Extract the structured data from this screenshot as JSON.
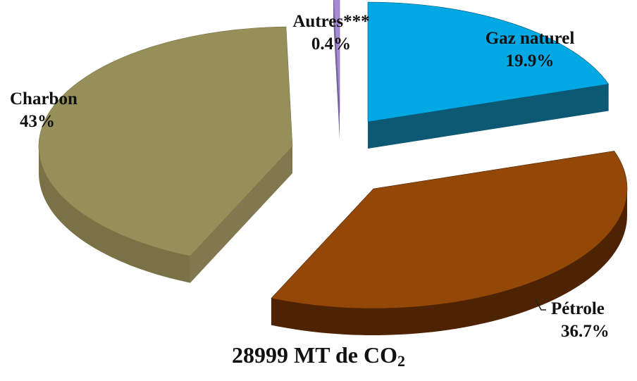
{
  "chart_data": {
    "type": "pie",
    "style": "exploded-3d",
    "title": "",
    "slices": [
      {
        "label": "Gaz naturel",
        "value_label": "19.9%",
        "value": 19.9,
        "top_color": "#00a8e4",
        "side_color": "#00506c"
      },
      {
        "label": "Pétrole",
        "value_label": "36.7%",
        "value": 36.7,
        "top_color": "#944808",
        "side_color": "#4e2303"
      },
      {
        "label": "Charbon",
        "value_label": "43%",
        "value": 43,
        "top_color": "#978f59",
        "side_color": "#7a7146"
      },
      {
        "label": "Autres***",
        "value_label": "0.4%",
        "value": 0.4,
        "top_color": "#a58cd2",
        "side_color": "#6f5c98"
      }
    ]
  },
  "caption": {
    "main": "28999 MT de CO",
    "subscript": "2"
  }
}
